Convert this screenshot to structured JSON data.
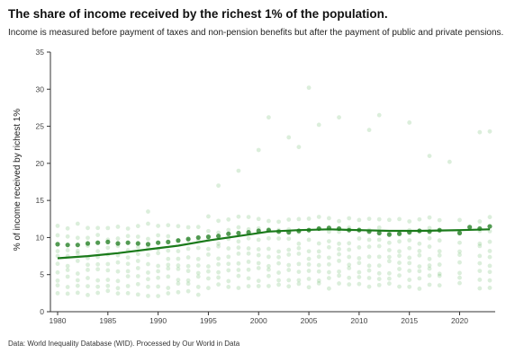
{
  "title": "The share of income received by the richest 1% of the population.",
  "subtitle": "Income is measured before payment of taxes and non-pension benefits but after the payment of public and private pensions.",
  "source": "Data: World Inequality Database (WID). Processed by Our World in Data",
  "colors": {
    "accent": "#1a7a1a",
    "points": "#3aa33a",
    "axis": "#333333"
  },
  "chart_data": {
    "type": "scatter",
    "title": "The share of income received by the richest 1% of the population.",
    "ylabel": "% of income received by richest 1%",
    "xlabel": "",
    "xlim": [
      1979,
      2024
    ],
    "ylim": [
      0,
      35
    ],
    "x_ticks": [
      1980,
      1985,
      1990,
      1995,
      2000,
      2005,
      2010,
      2015,
      2020
    ],
    "y_ticks": [
      0,
      5,
      10,
      15,
      20,
      25,
      30,
      35
    ],
    "grid": false,
    "trend_line": {
      "x": [
        1980,
        1983,
        1986,
        1989,
        1992,
        1995,
        1998,
        2001,
        2004,
        2007,
        2010,
        2013,
        2016,
        2020,
        2023
      ],
      "y": [
        7.2,
        7.5,
        7.9,
        8.4,
        8.9,
        9.6,
        10.2,
        10.8,
        11.0,
        11.1,
        11.0,
        10.9,
        10.9,
        11.0,
        11.1
      ]
    },
    "highlight_series": {
      "x": [
        1980,
        1981,
        1982,
        1983,
        1984,
        1985,
        1986,
        1987,
        1988,
        1989,
        1990,
        1991,
        1992,
        1993,
        1994,
        1995,
        1996,
        1997,
        1998,
        1999,
        2000,
        2001,
        2002,
        2003,
        2004,
        2005,
        2006,
        2007,
        2008,
        2009,
        2010,
        2011,
        2012,
        2013,
        2014,
        2015,
        2016,
        2017,
        2018,
        2020,
        2021,
        2022,
        2023
      ],
      "y": [
        9.1,
        9.0,
        9.0,
        9.2,
        9.3,
        9.4,
        9.2,
        9.3,
        9.2,
        9.1,
        9.3,
        9.4,
        9.6,
        9.8,
        10.0,
        10.1,
        10.2,
        10.5,
        10.6,
        10.7,
        10.9,
        11.0,
        10.8,
        10.7,
        10.9,
        11.0,
        11.2,
        11.3,
        11.2,
        11.0,
        11.0,
        10.8,
        10.6,
        10.4,
        10.5,
        10.7,
        10.9,
        10.8,
        11.0,
        10.6,
        11.4,
        11.2,
        11.5
      ]
    },
    "cloud_years": [
      1980,
      1981,
      1982,
      1983,
      1984,
      1985,
      1986,
      1987,
      1988,
      1989,
      1990,
      1991,
      1992,
      1993,
      1994,
      1995,
      1996,
      1997,
      1998,
      1999,
      2000,
      2001,
      2002,
      2003,
      2004,
      2005,
      2006,
      2007,
      2008,
      2009,
      2010,
      2011,
      2012,
      2013,
      2014,
      2015,
      2016,
      2017,
      2018,
      2020,
      2022,
      2023
    ],
    "cloud_values": [
      2.5,
      3.5,
      4.5,
      5.5,
      6.5,
      7.5,
      8.5,
      10.0,
      11.5
    ],
    "outliers": [
      {
        "x": 1989,
        "y": 13.5
      },
      {
        "x": 1996,
        "y": 17.0
      },
      {
        "x": 1998,
        "y": 19.0
      },
      {
        "x": 2000,
        "y": 21.8
      },
      {
        "x": 2001,
        "y": 26.2
      },
      {
        "x": 2003,
        "y": 23.5
      },
      {
        "x": 2004,
        "y": 22.2
      },
      {
        "x": 2005,
        "y": 30.2
      },
      {
        "x": 2006,
        "y": 25.2
      },
      {
        "x": 2008,
        "y": 26.2
      },
      {
        "x": 2011,
        "y": 24.5
      },
      {
        "x": 2012,
        "y": 26.5
      },
      {
        "x": 2015,
        "y": 25.5
      },
      {
        "x": 2017,
        "y": 21.0
      },
      {
        "x": 2019,
        "y": 20.2
      },
      {
        "x": 2022,
        "y": 24.2
      },
      {
        "x": 2023,
        "y": 24.3
      }
    ]
  }
}
